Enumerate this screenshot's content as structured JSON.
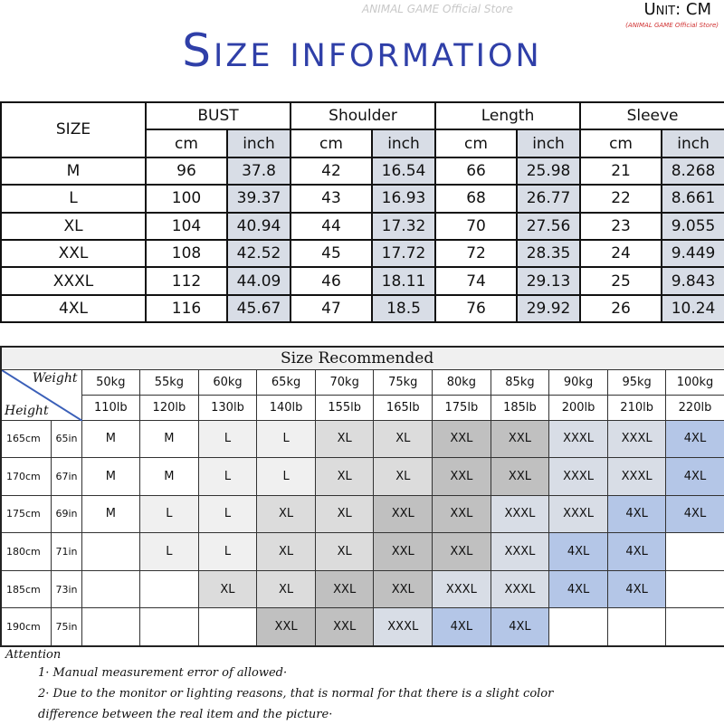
{
  "header": {
    "title": "Size information",
    "unit": "Unit: CM",
    "store": "(ANIMAL GAME Official Store)",
    "watermark": "ANIMAL GAME Official Store"
  },
  "size_table": {
    "size_label": "SIZE",
    "groups": [
      "BUST",
      "Shoulder",
      "Length",
      "Sleeve"
    ],
    "units": [
      "cm",
      "inch"
    ],
    "rows": [
      {
        "size": "M",
        "values": [
          "96",
          "37.8",
          "42",
          "16.54",
          "66",
          "25.98",
          "21",
          "8.268"
        ]
      },
      {
        "size": "L",
        "values": [
          "100",
          "39.37",
          "43",
          "16.93",
          "68",
          "26.77",
          "22",
          "8.661"
        ]
      },
      {
        "size": "XL",
        "values": [
          "104",
          "40.94",
          "44",
          "17.32",
          "70",
          "27.56",
          "23",
          "9.055"
        ]
      },
      {
        "size": "XXL",
        "values": [
          "108",
          "42.52",
          "45",
          "17.72",
          "72",
          "28.35",
          "24",
          "9.449"
        ]
      },
      {
        "size": "XXXL",
        "values": [
          "112",
          "44.09",
          "46",
          "18.11",
          "74",
          "29.13",
          "25",
          "9.843"
        ]
      },
      {
        "size": "4XL",
        "values": [
          "116",
          "45.67",
          "47",
          "18.5",
          "76",
          "29.92",
          "26",
          "10.24"
        ]
      }
    ]
  },
  "recommend_table": {
    "title": "Size Recommended",
    "weight_label": "Weight",
    "height_label": "Height",
    "weights_kg": [
      "50kg",
      "55kg",
      "60kg",
      "65kg",
      "70kg",
      "75kg",
      "80kg",
      "85kg",
      "90kg",
      "95kg",
      "100kg"
    ],
    "weights_lb": [
      "110lb",
      "120lb",
      "130lb",
      "140lb",
      "155lb",
      "165lb",
      "175lb",
      "185lb",
      "200lb",
      "210lb",
      "220lb"
    ],
    "size_colors": {
      "M": "#ffffff",
      "L": "#f0f0f0",
      "XL": "#dcdcdc",
      "XXL": "#c0c0c0",
      "XXXL": "#d8dde6",
      "4XL": "#b4c6e7"
    },
    "rows": [
      {
        "cm": "165cm",
        "in": "65in",
        "sizes": [
          "M",
          "M",
          "L",
          "L",
          "XL",
          "XL",
          "XXL",
          "XXL",
          "XXXL",
          "XXXL",
          "4XL"
        ]
      },
      {
        "cm": "170cm",
        "in": "67in",
        "sizes": [
          "M",
          "M",
          "L",
          "L",
          "XL",
          "XL",
          "XXL",
          "XXL",
          "XXXL",
          "XXXL",
          "4XL"
        ]
      },
      {
        "cm": "175cm",
        "in": "69in",
        "sizes": [
          "M",
          "L",
          "L",
          "XL",
          "XL",
          "XXL",
          "XXL",
          "XXXL",
          "XXXL",
          "4XL",
          "4XL"
        ]
      },
      {
        "cm": "180cm",
        "in": "71in",
        "sizes": [
          "",
          "L",
          "L",
          "XL",
          "XL",
          "XXL",
          "XXL",
          "XXXL",
          "4XL",
          "4XL",
          ""
        ]
      },
      {
        "cm": "185cm",
        "in": "73in",
        "sizes": [
          "",
          "",
          "XL",
          "XL",
          "XXL",
          "XXL",
          "XXXL",
          "XXXL",
          "4XL",
          "4XL",
          ""
        ]
      },
      {
        "cm": "190cm",
        "in": "75in",
        "sizes": [
          "",
          "",
          "",
          "XXL",
          "XXL",
          "XXXL",
          "4XL",
          "4XL",
          "",
          "",
          ""
        ]
      }
    ]
  },
  "notes": {
    "heading": "Attention",
    "items": [
      "1· Manual measurement error of allowed·",
      "2·  Due to the monitor or lighting reasons, that is normal for that there is a slight color"
    ],
    "continuation": "difference between the real item and the picture·"
  }
}
